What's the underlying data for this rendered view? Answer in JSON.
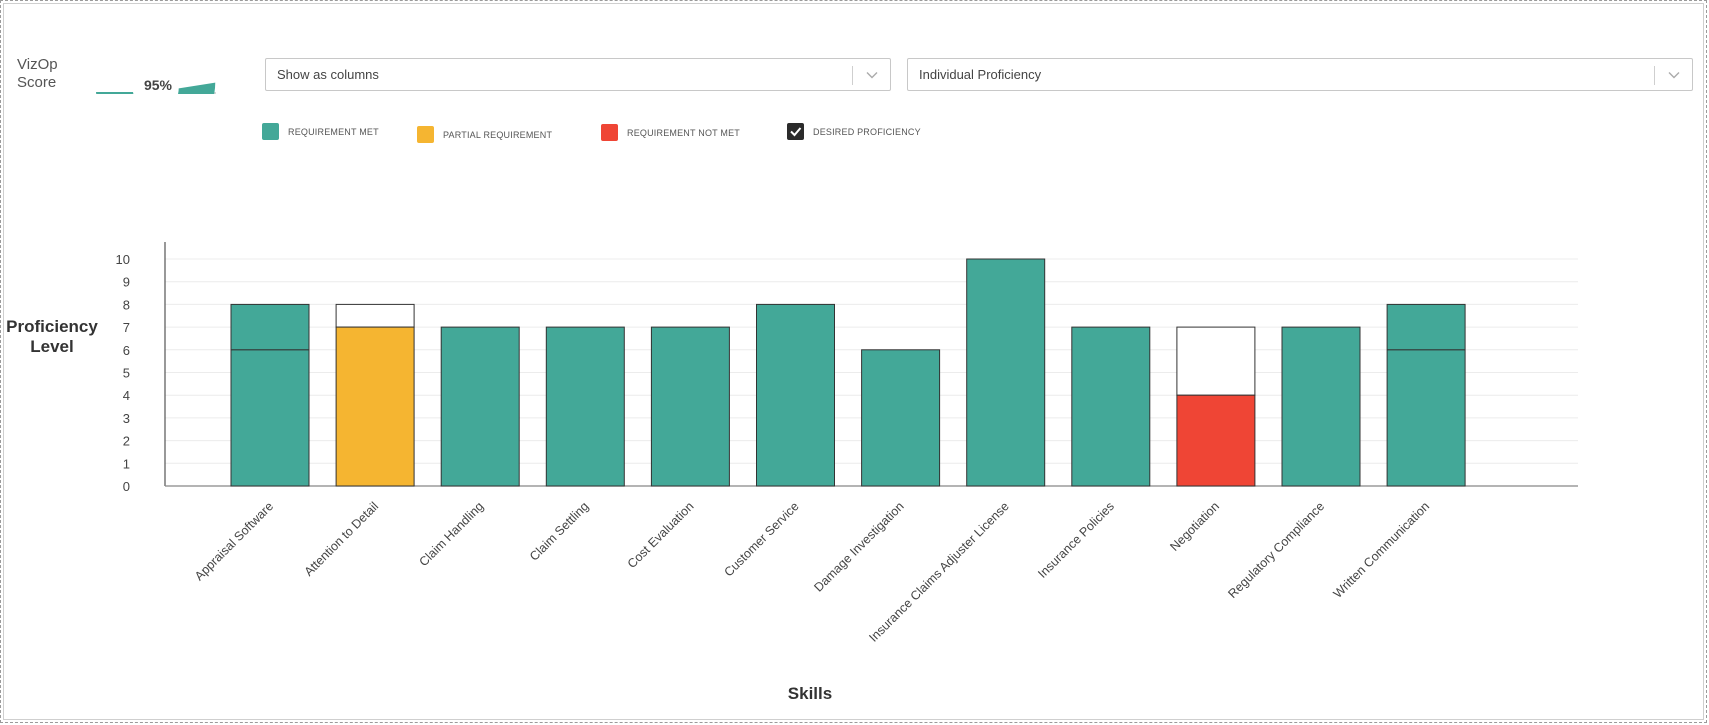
{
  "score": {
    "label_line1": "VizOp",
    "label_line2": "Score",
    "value_text": "95%",
    "value": 0.95,
    "color": "#43a898",
    "track_color": "#d8d8d8"
  },
  "controls": {
    "view_select": {
      "value": "Show as columns"
    },
    "mode_select": {
      "value": "Individual Proficiency"
    }
  },
  "legend": [
    {
      "label": "REQUIREMENT MET",
      "color": "#43a898",
      "icon": "square-swatch"
    },
    {
      "label": "PARTIAL REQUIREMENT",
      "color": "#f5b531",
      "icon": "square-swatch"
    },
    {
      "label": "REQUIREMENT NOT MET",
      "color": "#ef4535",
      "icon": "square-swatch"
    },
    {
      "label": "DESIRED PROFICIENCY",
      "color": "#2b2b2b",
      "icon": "checkbox-checked"
    }
  ],
  "chart_data": {
    "type": "bar",
    "ylabel_line1": "Proficiency",
    "ylabel_line2": "Level",
    "xlabel": "Skills",
    "ylim": [
      0,
      10
    ],
    "yticks": [
      0,
      1,
      2,
      3,
      4,
      5,
      6,
      7,
      8,
      9,
      10
    ],
    "grid": true,
    "categories": [
      "Appraisal Software",
      "Attention to Detail",
      "Claim Handling",
      "Claim Settling",
      "Cost Evaluation",
      "Customer Service",
      "Damage Investigation",
      "Insurance Claims Adjuster License",
      "Insurance Policies",
      "Negotiation",
      "Regulatory Compliance",
      "Written Communication"
    ],
    "individual_proficiency": [
      8,
      7,
      7,
      7,
      7,
      8,
      6,
      10,
      7,
      4,
      7,
      8
    ],
    "desired_proficiency": [
      6,
      8,
      7,
      7,
      7,
      8,
      6,
      10,
      7,
      7,
      7,
      6
    ],
    "status": [
      "met",
      "partial",
      "met",
      "met",
      "met",
      "met",
      "met",
      "met",
      "met",
      "not_met",
      "met",
      "met"
    ],
    "colors": {
      "met": "#43a898",
      "partial": "#f5b531",
      "not_met": "#ef4535"
    }
  }
}
